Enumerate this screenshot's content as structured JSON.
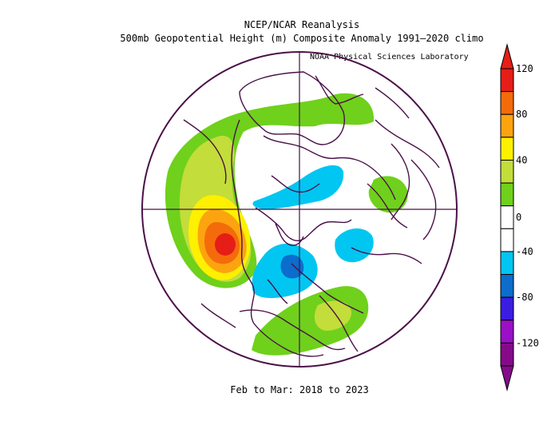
{
  "title_line1": "NCEP/NCAR Reanalysis",
  "title_line2": "500mb Geopotential Height (m) Composite Anomaly 1991–2020 climo",
  "credit": "NOAA Physical Sciences Laboratory",
  "period": "Feb to Mar: 2018 to 2023",
  "colorbar": {
    "labels": [
      "120",
      "80",
      "40",
      "0",
      "-40",
      "-80",
      "-120"
    ],
    "levels": [
      120,
      100,
      80,
      60,
      40,
      20,
      0,
      -20,
      -40,
      -60,
      -80,
      -100,
      -120
    ],
    "colors": [
      "#e51e17",
      "#f46b0c",
      "#fca40f",
      "#fdf000",
      "#c3dd3a",
      "#6fd11b",
      "#ffffff",
      "#ffffff",
      "#00c6f1",
      "#0c6dcc",
      "#3b1de1",
      "#9a0fc7",
      "#850a8a"
    ]
  },
  "map_colors": {
    "outline": "#4a1148",
    "neg20": "#00c6f1",
    "neg40": "#0c6dcc",
    "pos20": "#6fd11b",
    "pos40": "#c3dd3a",
    "pos60": "#fdf000",
    "pos80": "#fca40f",
    "pos100": "#f46b0c",
    "pos120": "#e51e17"
  }
}
